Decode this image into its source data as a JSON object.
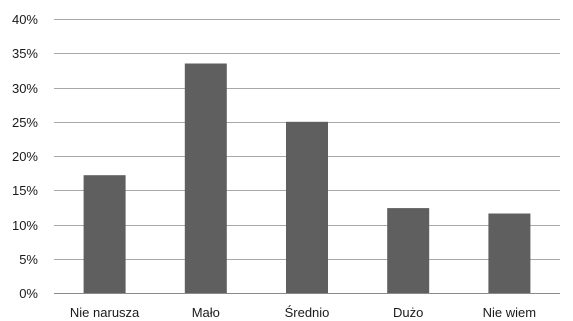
{
  "chart_data": {
    "type": "bar",
    "title": "",
    "xlabel": "",
    "ylabel": "",
    "categories": [
      "Nie narusza",
      "Mało",
      "Średnio",
      "Dużo",
      "Nie wiem"
    ],
    "values": [
      17.2,
      33.5,
      25.0,
      12.4,
      11.6
    ],
    "ylim": [
      0,
      40
    ],
    "yticks": [
      "0%",
      "5%",
      "10%",
      "15%",
      "20%",
      "25%",
      "30%",
      "35%",
      "40%"
    ],
    "grid": true,
    "legend": "none",
    "colors": {
      "bar": "#5f5f5f",
      "grid": "#a8a8a8",
      "axis": "#8a8a8a",
      "text": "#1a1a1a"
    }
  }
}
